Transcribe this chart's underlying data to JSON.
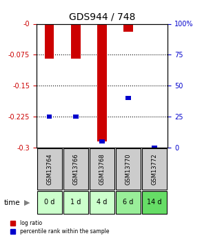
{
  "title": "GDS944 / 748",
  "samples": [
    "GSM13764",
    "GSM13766",
    "GSM13768",
    "GSM13770",
    "GSM13772"
  ],
  "time_labels": [
    "0 d",
    "1 d",
    "4 d",
    "6 d",
    "14 d"
  ],
  "log_ratios": [
    -0.085,
    -0.085,
    -0.285,
    -0.02,
    -0.002
  ],
  "percentile_ranks": [
    25,
    25,
    5,
    40,
    0
  ],
  "ylim_left": [
    -0.3,
    0
  ],
  "ylim_right": [
    0,
    100
  ],
  "yticks_left": [
    0,
    -0.075,
    -0.15,
    -0.225,
    -0.3
  ],
  "yticks_right": [
    100,
    75,
    50,
    25,
    0
  ],
  "ytick_labels_right": [
    "100%",
    "75",
    "50",
    "25",
    "0"
  ],
  "ytick_labels_left": [
    "-0",
    "-0.075",
    "-0.15",
    "-0.225",
    "-0.3"
  ],
  "bar_color": "#cc0000",
  "dot_color": "#0000cc",
  "left_axis_color": "#cc0000",
  "right_axis_color": "#0000cc",
  "sample_bg_color": "#cccccc",
  "time_bg_colors": [
    "#ccffcc",
    "#ccffcc",
    "#ccffcc",
    "#99ee99",
    "#66dd66"
  ],
  "legend_red_label": "log ratio",
  "legend_blue_label": "percentile rank within the sample",
  "figsize": [
    2.93,
    3.45
  ],
  "dpi": 100
}
